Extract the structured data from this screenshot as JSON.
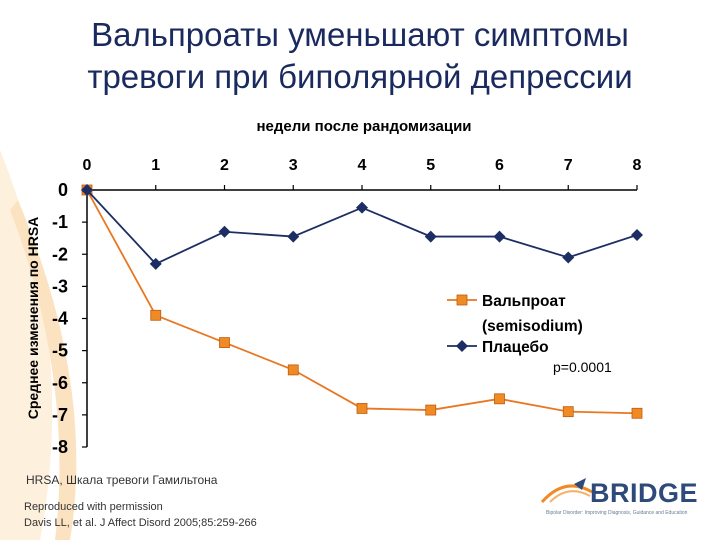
{
  "title_lines": [
    "Вальпроаты уменьшают симптомы",
    "тревоги при биполярной депрессии"
  ],
  "chart_data": {
    "type": "line",
    "title": "",
    "xlabel": "недели после рандомизации",
    "ylabel": "Среднее изменения по HRSA",
    "x": [
      0,
      1,
      2,
      3,
      4,
      5,
      6,
      7,
      8
    ],
    "x_tick_labels": [
      "0",
      "1",
      "2",
      "3",
      "4",
      "5",
      "6",
      "7",
      "8"
    ],
    "x_axis_position": "top",
    "ylim": [
      -8,
      0
    ],
    "y_ticks": [
      0,
      -1,
      -2,
      -3,
      -4,
      -5,
      -6,
      -7,
      -8
    ],
    "y_tick_labels": [
      "0",
      "-1",
      "-2",
      "-3",
      "-4",
      "-5",
      "-6",
      "-7",
      "-8"
    ],
    "grid": false,
    "legend_position": "right",
    "series": [
      {
        "name": "Вальпроат (semisodium)",
        "name_lines": [
          "Вальпроат",
          "(semisodium)"
        ],
        "marker": "square",
        "color": "#e87722",
        "marker_color": "#f08a24",
        "values": [
          0,
          -3.9,
          -4.75,
          -5.6,
          -6.8,
          -6.85,
          -6.5,
          -6.9,
          -6.95
        ]
      },
      {
        "name": "Плацебо",
        "name_lines": [
          "Плацебо"
        ],
        "marker": "diamond",
        "color": "#1c2e63",
        "marker_color": "#1c2e63",
        "values": [
          0,
          -2.3,
          -1.3,
          -1.45,
          -0.55,
          -1.45,
          -1.45,
          -2.1,
          -1.4
        ]
      }
    ],
    "annotations": [
      {
        "text": "p=0.0001"
      }
    ]
  },
  "footnote": "HRSA, Шкала тревоги Гамильтона",
  "reproduced_lines": [
    "Reproduced with permission",
    "Davis LL, et al.  J Affect Disord 2005;85:259-266"
  ],
  "logo": {
    "word": "BRIDGE",
    "tagline": "Bipolar Disorder: Improving Diagnosis, Guidance and Education"
  },
  "colors": {
    "title": "#1a2a5e",
    "axis": "#000000",
    "valproate": "#e87722",
    "placebo": "#1c2e63",
    "logo": "#2d4a7a"
  }
}
